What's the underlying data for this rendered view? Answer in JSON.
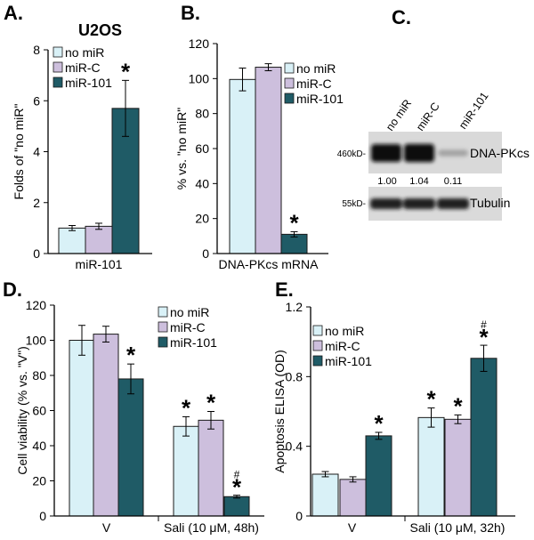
{
  "colors": {
    "no_mir": "#d9f1f7",
    "mir_c": "#cdbfdd",
    "mir_101": "#1f5b66",
    "axis": "#000000"
  },
  "chart_data": [
    {
      "panel": "A.",
      "type": "bar",
      "title": "U2OS",
      "ylabel": "Folds of \"no miR\"",
      "xlabel": "",
      "categories": [
        "miR-101"
      ],
      "ylim": [
        0,
        8
      ],
      "yticks": [
        0,
        2,
        4,
        6,
        8
      ],
      "legend_position": "top-left",
      "series": [
        {
          "name": "no miR",
          "color_key": "no_mir",
          "values": [
            1.0
          ],
          "errors": [
            0.1
          ],
          "marks": [
            ""
          ]
        },
        {
          "name": "miR-C",
          "color_key": "mir_c",
          "values": [
            1.07
          ],
          "errors": [
            0.12
          ],
          "marks": [
            ""
          ]
        },
        {
          "name": "miR-101",
          "color_key": "mir_101",
          "values": [
            5.7
          ],
          "errors": [
            1.1
          ],
          "marks": [
            "*"
          ]
        }
      ]
    },
    {
      "panel": "B.",
      "type": "bar",
      "title": "",
      "ylabel": "% vs. \"no miR\"",
      "xlabel": "",
      "categories": [
        "DNA-PKcs mRNA"
      ],
      "ylim": [
        0,
        120
      ],
      "yticks": [
        0,
        20,
        40,
        60,
        80,
        100,
        120
      ],
      "legend_position": "right",
      "series": [
        {
          "name": "no miR",
          "color_key": "no_mir",
          "values": [
            99.5
          ],
          "errors": [
            6.5
          ],
          "marks": [
            ""
          ]
        },
        {
          "name": "miR-C",
          "color_key": "mir_c",
          "values": [
            106.5
          ],
          "errors": [
            2.0
          ],
          "marks": [
            ""
          ]
        },
        {
          "name": "miR-101",
          "color_key": "mir_101",
          "values": [
            11.0
          ],
          "errors": [
            1.5
          ],
          "marks": [
            "*"
          ]
        }
      ]
    },
    {
      "panel": "D.",
      "type": "bar",
      "title": "",
      "ylabel": "Cell viability (% vs. \"V\")",
      "xlabel": "",
      "categories": [
        "V",
        "Sali (10 μM, 48h)"
      ],
      "ylim": [
        0,
        120
      ],
      "yticks": [
        0,
        20,
        40,
        60,
        80,
        100,
        120
      ],
      "legend_position": "top-right",
      "series": [
        {
          "name": "no miR",
          "color_key": "no_mir",
          "values": [
            100,
            51
          ],
          "errors": [
            8.5,
            5.5
          ],
          "marks": [
            "",
            "*"
          ]
        },
        {
          "name": "miR-C",
          "color_key": "mir_c",
          "values": [
            103.5,
            54.5
          ],
          "errors": [
            4.5,
            5.0
          ],
          "marks": [
            "",
            "*"
          ]
        },
        {
          "name": "miR-101",
          "color_key": "mir_101",
          "values": [
            78,
            11
          ],
          "errors": [
            8.5,
            0.8
          ],
          "marks": [
            "*",
            "#*"
          ]
        }
      ]
    },
    {
      "panel": "E.",
      "type": "bar",
      "title": "",
      "ylabel": "Apoptosis ELISA (OD)",
      "xlabel": "",
      "categories": [
        "V",
        "Sali (10 μM, 32h)"
      ],
      "ylim": [
        0,
        1.2
      ],
      "yticks": [
        0,
        0.4,
        0.8,
        1.2
      ],
      "ytick_labels": [
        "0",
        "0.4",
        "0.8",
        "1.2"
      ],
      "legend_position": "top-left",
      "series": [
        {
          "name": "no miR",
          "color_key": "no_mir",
          "values": [
            0.24,
            0.565
          ],
          "errors": [
            0.015,
            0.055
          ],
          "marks": [
            "",
            "*"
          ]
        },
        {
          "name": "miR-C",
          "color_key": "mir_c",
          "values": [
            0.21,
            0.555
          ],
          "errors": [
            0.015,
            0.025
          ],
          "marks": [
            "",
            "*"
          ]
        },
        {
          "name": "miR-101",
          "color_key": "mir_101",
          "values": [
            0.46,
            0.905
          ],
          "errors": [
            0.02,
            0.075
          ],
          "marks": [
            "*",
            "#*"
          ]
        }
      ]
    }
  ],
  "blot": {
    "panel": "C.",
    "lanes": [
      "no miR",
      "miR-C",
      "miR-101"
    ],
    "rows": [
      {
        "marker": "460kD-",
        "protein": "DNA-PKcs",
        "intensities": [
          1.0,
          1.04,
          0.11
        ]
      },
      {
        "marker": "55kD-",
        "protein": "Tubulin",
        "intensities": [
          1.0,
          1.0,
          1.0
        ]
      }
    ],
    "quant": [
      "1.00",
      "1.04",
      "0.11"
    ]
  }
}
